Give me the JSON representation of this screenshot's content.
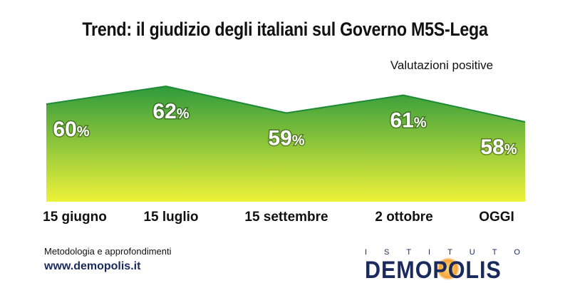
{
  "chart_data": {
    "type": "area",
    "title": "Trend: il giudizio degli italiani sul Governo M5S-Lega",
    "subtitle": "Valutazioni positive",
    "categories": [
      "15 giugno",
      "15 luglio",
      "15 settembre",
      "2 ottobre",
      "OGGI"
    ],
    "series": [
      {
        "name": "Valutazioni positive",
        "values": [
          60,
          62,
          59,
          61,
          58
        ]
      }
    ],
    "value_suffix": "%",
    "colors": {
      "top": "#2f9a3c",
      "bottom": "#eef23a",
      "edge": "#1f8a35"
    },
    "grid": false,
    "legend": "none"
  },
  "footer": {
    "label": "Metodologia e approfondimenti",
    "url": "www.demopolis.it"
  },
  "logo": {
    "small": [
      "I",
      "S",
      "T",
      "I",
      "T",
      "U",
      "T",
      "O"
    ],
    "name": "DEMOPOLIS"
  }
}
